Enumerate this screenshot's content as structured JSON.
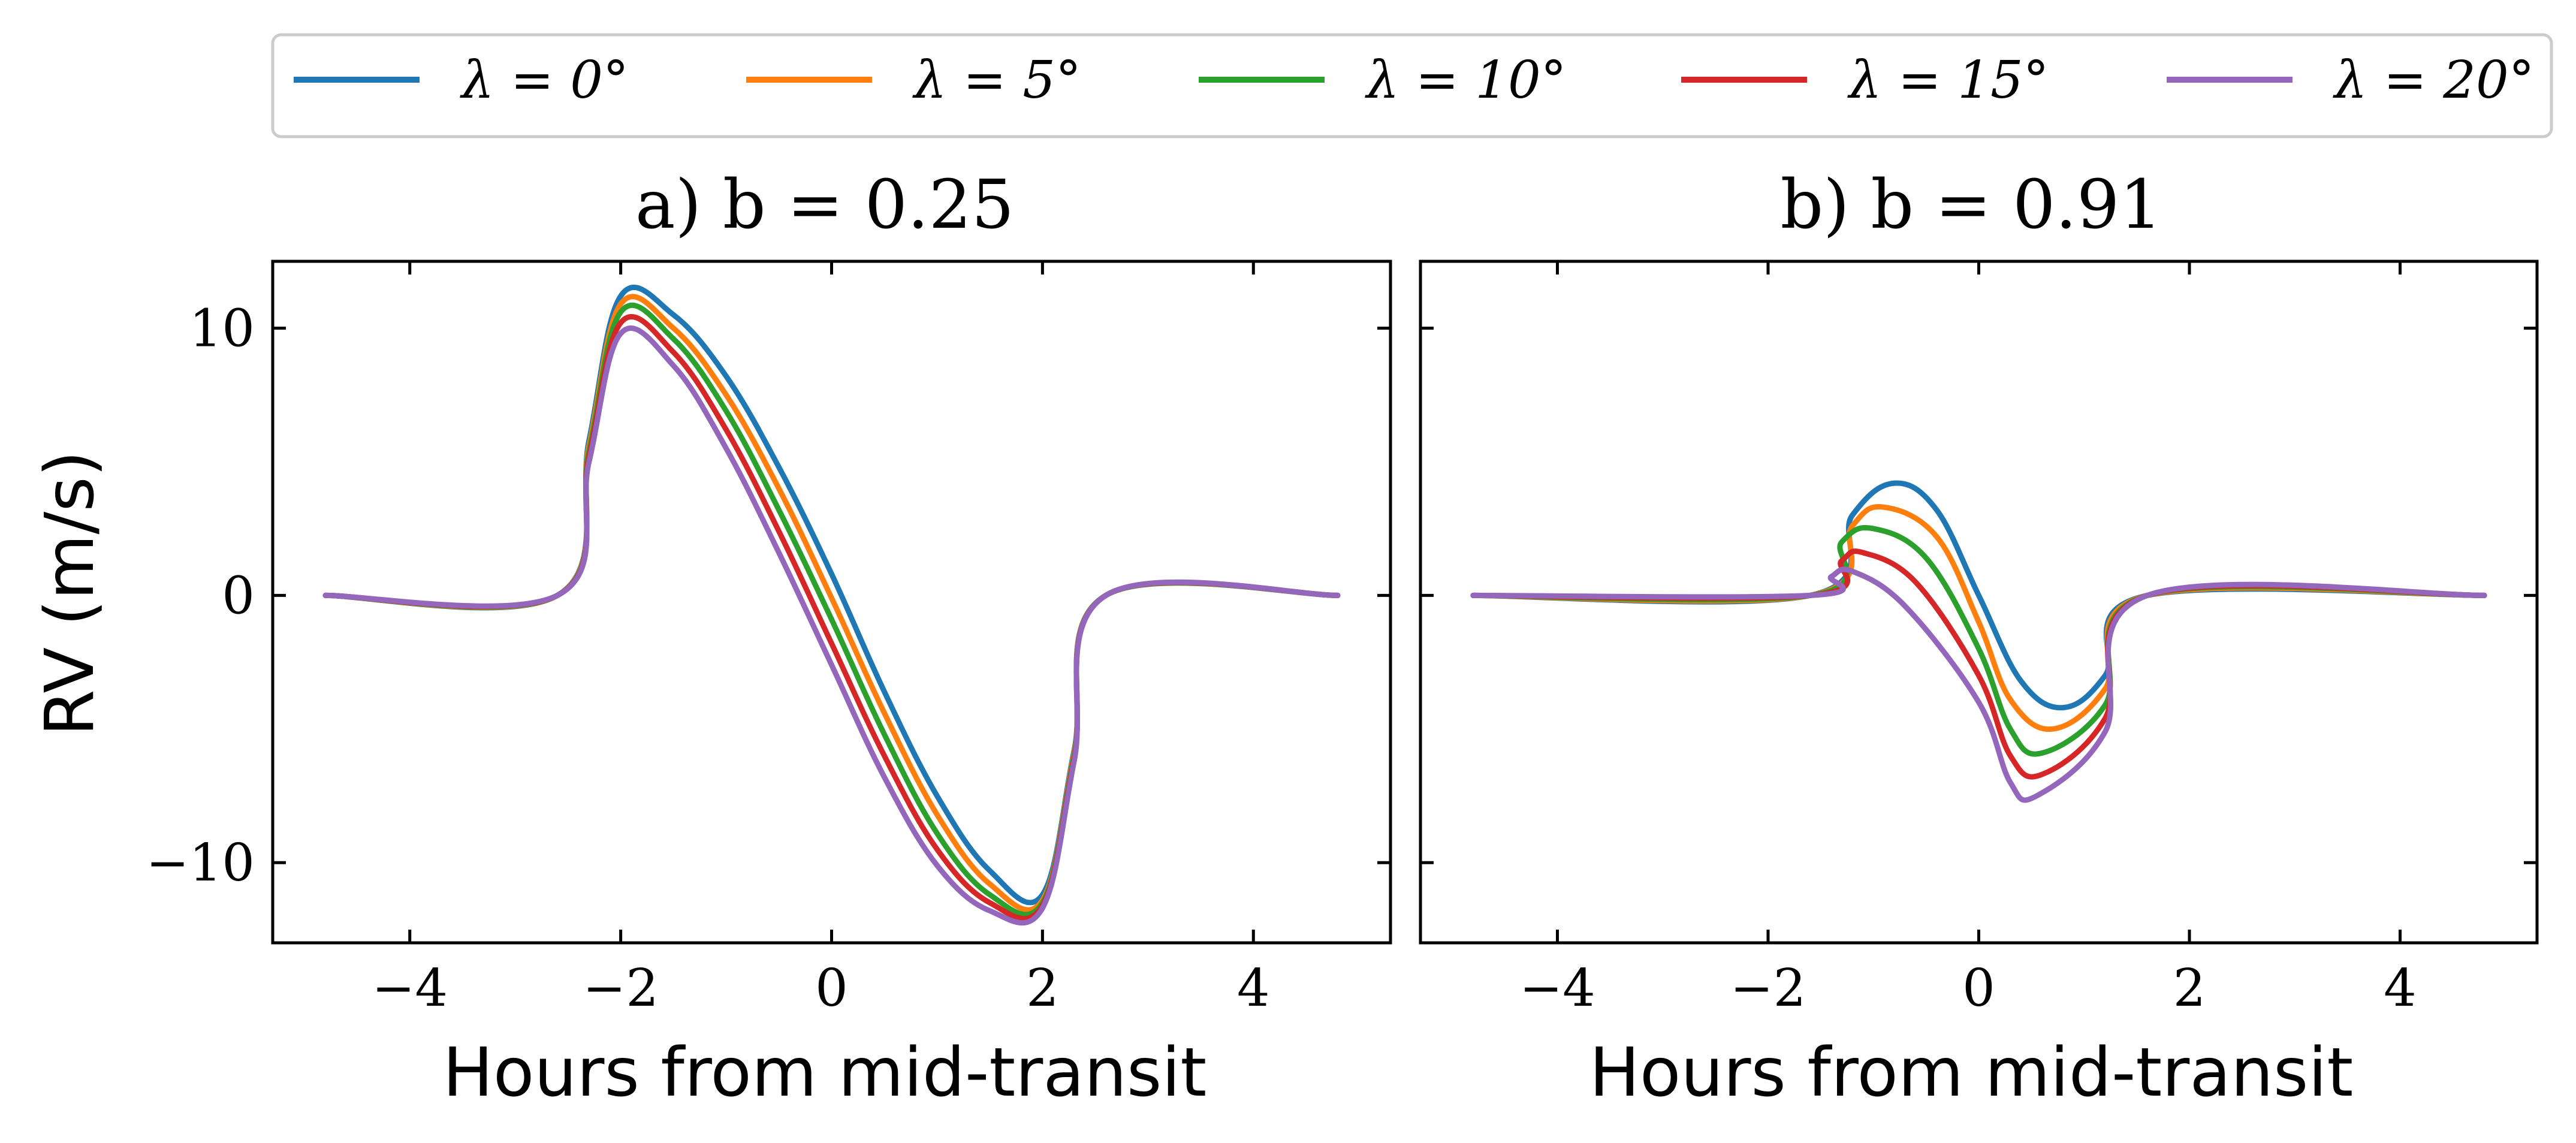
{
  "chart_data": [
    {
      "type": "line",
      "title": "a) b = 0.25",
      "xlabel": "Hours from mid-transit",
      "ylabel": "RV (m/s)",
      "xlim": [
        -5.3,
        5.3
      ],
      "ylim": [
        -13,
        12.5
      ],
      "xticks": [
        -4,
        -2,
        0,
        2,
        4
      ],
      "xtick_labels": [
        "−4",
        "−2",
        "0",
        "2",
        "4"
      ],
      "yticks": [
        -10,
        0,
        10
      ],
      "ytick_labels": [
        "−10",
        "0",
        "10"
      ],
      "grid": false,
      "series": [
        {
          "name": "λ = 0°",
          "color": "#1f77b4",
          "x": [
            -4.8,
            -2.6,
            -2.3,
            -2.0,
            -1.5,
            -1.0,
            -0.5,
            0.0,
            0.5,
            1.0,
            1.5,
            2.0,
            2.3,
            2.6,
            4.8
          ],
          "y": [
            0,
            0,
            5.8,
            11.2,
            10.5,
            8.2,
            4.8,
            0.8,
            -3.6,
            -7.5,
            -10.3,
            -11.2,
            -5.8,
            0,
            0
          ]
        },
        {
          "name": "λ = 5°",
          "color": "#ff7f0e",
          "x": [
            -4.8,
            -2.6,
            -2.3,
            -2.0,
            -1.5,
            -1.0,
            -0.5,
            0.0,
            0.5,
            1.0,
            1.5,
            2.0,
            2.3,
            2.6,
            4.8
          ],
          "y": [
            0,
            0,
            5.6,
            10.9,
            10.0,
            7.5,
            4.0,
            -0.1,
            -4.4,
            -8.2,
            -10.8,
            -11.4,
            -5.9,
            0,
            0
          ]
        },
        {
          "name": "λ = 10°",
          "color": "#2ca02c",
          "x": [
            -4.8,
            -2.6,
            -2.3,
            -2.0,
            -1.5,
            -1.0,
            -0.5,
            0.0,
            0.5,
            1.0,
            1.5,
            2.0,
            2.3,
            2.6,
            4.8
          ],
          "y": [
            0,
            0,
            5.4,
            10.6,
            9.6,
            6.9,
            3.2,
            -0.9,
            -5.2,
            -8.9,
            -11.2,
            -11.5,
            -6.0,
            0,
            0
          ]
        },
        {
          "name": "λ = 15°",
          "color": "#d62728",
          "x": [
            -4.8,
            -2.6,
            -2.3,
            -2.0,
            -1.5,
            -1.0,
            -0.5,
            0.0,
            0.5,
            1.0,
            1.5,
            2.0,
            2.3,
            2.6,
            4.8
          ],
          "y": [
            0,
            0,
            5.2,
            10.2,
            9.1,
            6.2,
            2.4,
            -1.8,
            -6.0,
            -9.5,
            -11.5,
            -11.6,
            -6.1,
            0,
            0
          ]
        },
        {
          "name": "λ = 20°",
          "color": "#9467bd",
          "x": [
            -4.8,
            -2.6,
            -2.3,
            -2.0,
            -1.5,
            -1.0,
            -0.5,
            0.0,
            0.5,
            1.0,
            1.5,
            2.0,
            2.3,
            2.6,
            4.8
          ],
          "y": [
            0,
            0,
            5.0,
            9.8,
            8.6,
            5.5,
            1.6,
            -2.6,
            -6.8,
            -10.1,
            -11.8,
            -11.7,
            -6.2,
            0,
            0
          ]
        }
      ]
    },
    {
      "type": "line",
      "title": "b) b = 0.91",
      "xlabel": "Hours from mid-transit",
      "ylabel": "",
      "xlim": [
        -5.3,
        5.3
      ],
      "ylim": [
        -13,
        12.5
      ],
      "xticks": [
        -4,
        -2,
        0,
        2,
        4
      ],
      "xtick_labels": [
        "−4",
        "−2",
        "0",
        "2",
        "4"
      ],
      "yticks": [
        -10,
        0,
        10
      ],
      "ytick_labels": [],
      "grid": false,
      "series": [
        {
          "name": "λ = 0°",
          "color": "#1f77b4",
          "x": [
            -4.8,
            -1.6,
            -1.2,
            -0.8,
            -0.4,
            0.0,
            0.4,
            0.8,
            1.2,
            1.6,
            4.8
          ],
          "y": [
            0,
            0,
            3.0,
            4.2,
            3.2,
            0,
            -3.2,
            -4.2,
            -3.0,
            0,
            0
          ]
        },
        {
          "name": "λ = 5°",
          "color": "#ff7f0e",
          "x": [
            -4.8,
            -1.6,
            -1.2,
            -0.9,
            -0.4,
            0.0,
            0.3,
            0.7,
            1.2,
            1.6,
            4.8
          ],
          "y": [
            0,
            0,
            2.6,
            3.3,
            2.2,
            -1.0,
            -3.9,
            -5.0,
            -3.5,
            0,
            0
          ]
        },
        {
          "name": "λ = 10°",
          "color": "#2ca02c",
          "x": [
            -4.8,
            -1.6,
            -1.3,
            -1.0,
            -0.5,
            0.0,
            0.3,
            0.6,
            1.2,
            1.6,
            4.8
          ],
          "y": [
            0,
            0,
            2.0,
            2.5,
            1.4,
            -2.0,
            -5.0,
            -5.9,
            -4.1,
            0,
            0
          ]
        },
        {
          "name": "λ = 15°",
          "color": "#d62728",
          "x": [
            -4.8,
            -1.6,
            -1.3,
            -1.1,
            -0.6,
            0.0,
            0.3,
            0.6,
            1.2,
            1.6,
            4.8
          ],
          "y": [
            0,
            0,
            1.3,
            1.6,
            0.5,
            -3.0,
            -6.0,
            -6.7,
            -4.6,
            0,
            0
          ]
        },
        {
          "name": "λ = 20°",
          "color": "#9467bd",
          "x": [
            -4.8,
            -1.6,
            -1.4,
            -1.2,
            -0.7,
            0.0,
            0.3,
            0.55,
            1.2,
            1.6,
            4.8
          ],
          "y": [
            0,
            0,
            0.7,
            0.9,
            -0.4,
            -4.0,
            -7.0,
            -7.5,
            -5.1,
            0,
            0
          ]
        }
      ]
    }
  ],
  "legend": {
    "placement": "top",
    "entries": [
      {
        "label": "λ = 0°",
        "color": "#1f77b4"
      },
      {
        "label": "λ = 5°",
        "color": "#ff7f0e"
      },
      {
        "label": "λ = 10°",
        "color": "#2ca02c"
      },
      {
        "label": "λ = 15°",
        "color": "#d62728"
      },
      {
        "label": "λ = 20°",
        "color": "#9467bd"
      }
    ]
  }
}
